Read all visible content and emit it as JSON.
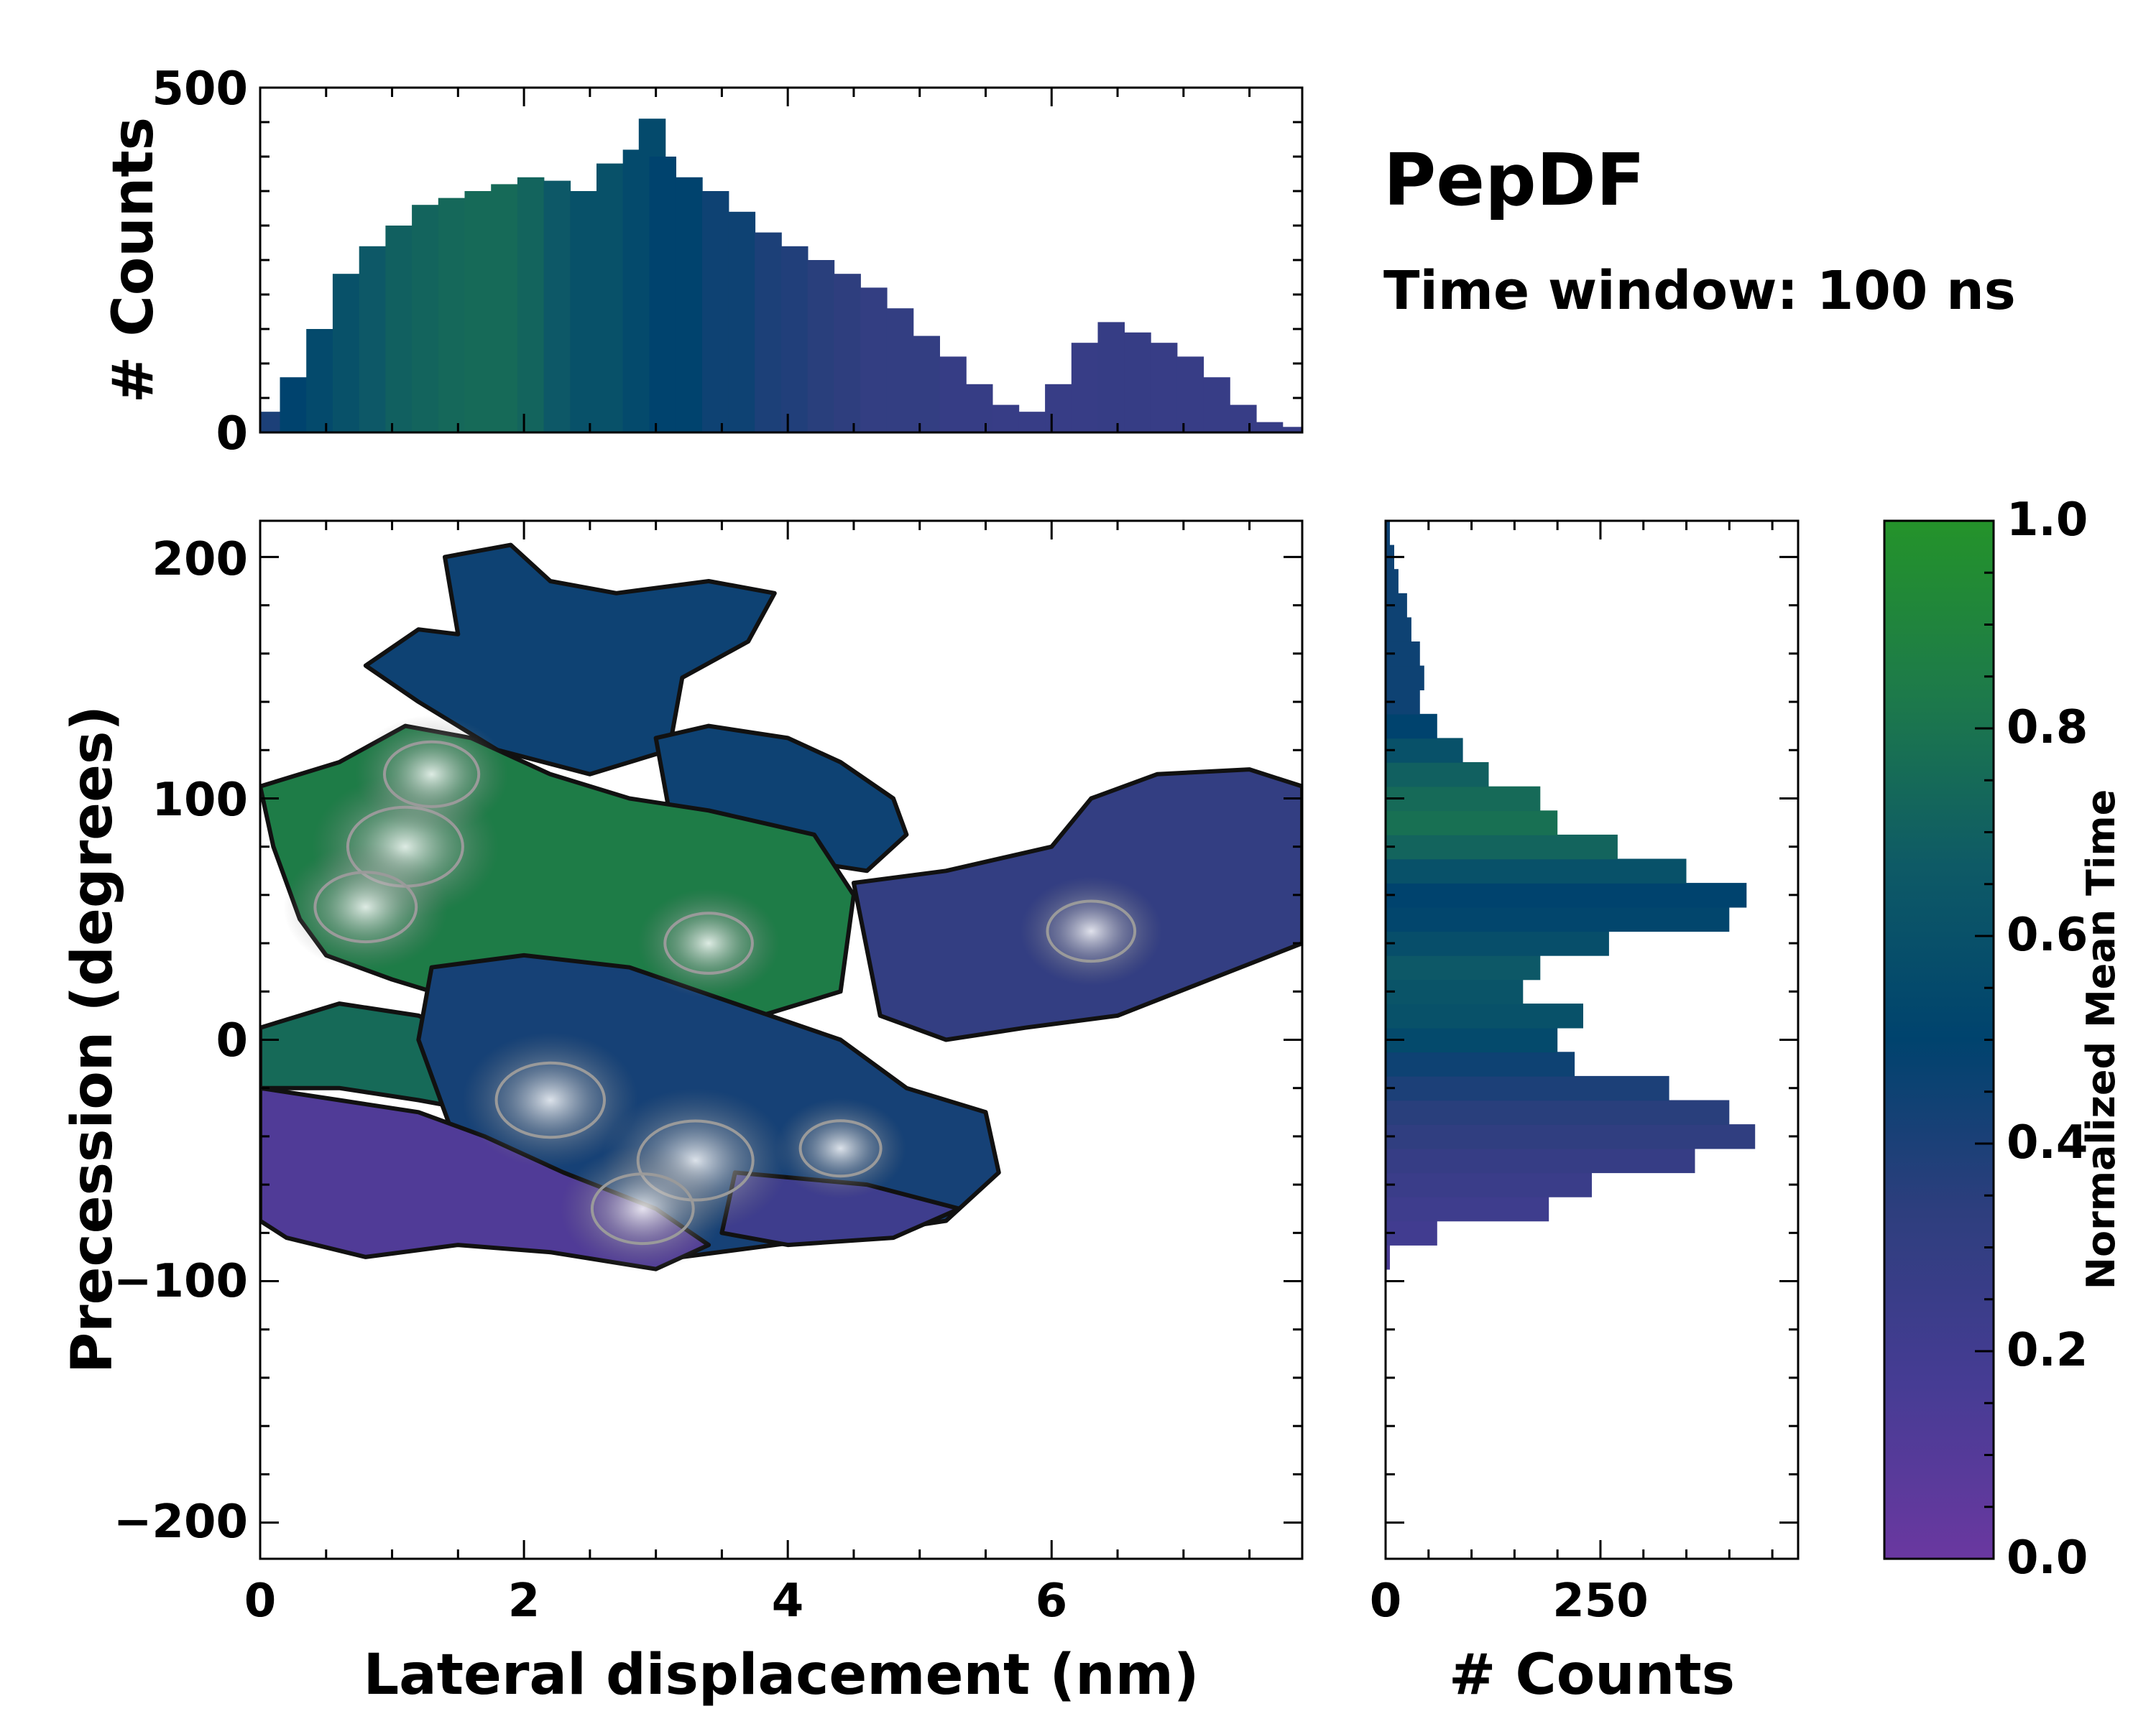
{
  "figure": {
    "title": "PepDF",
    "subtitle": "Time window: 100 ns"
  },
  "chart_data": [
    {
      "id": "top-histogram",
      "type": "bar",
      "ylabel": "# Counts",
      "xlim": [
        0,
        7.9
      ],
      "ylim": [
        0,
        500
      ],
      "yticks": [
        0,
        500
      ],
      "x": [
        0.05,
        0.25,
        0.45,
        0.65,
        0.85,
        1.05,
        1.25,
        1.45,
        1.65,
        1.85,
        2.05,
        2.25,
        2.45,
        2.65,
        2.85,
        2.97,
        3.05,
        3.25,
        3.45,
        3.65,
        3.85,
        4.05,
        4.25,
        4.45,
        4.65,
        4.85,
        5.05,
        5.25,
        5.45,
        5.65,
        5.85,
        6.05,
        6.25,
        6.45,
        6.65,
        6.85,
        7.05,
        7.25,
        7.45,
        7.65,
        7.85
      ],
      "values": [
        30,
        80,
        150,
        230,
        270,
        300,
        330,
        340,
        350,
        360,
        370,
        365,
        350,
        390,
        410,
        455,
        400,
        370,
        350,
        320,
        290,
        270,
        250,
        230,
        210,
        180,
        140,
        110,
        70,
        40,
        30,
        70,
        130,
        160,
        145,
        130,
        110,
        80,
        40,
        15,
        8
      ],
      "color_values": [
        0.4,
        0.5,
        0.55,
        0.6,
        0.65,
        0.7,
        0.72,
        0.74,
        0.75,
        0.75,
        0.72,
        0.65,
        0.6,
        0.6,
        0.55,
        0.55,
        0.5,
        0.5,
        0.45,
        0.45,
        0.4,
        0.38,
        0.35,
        0.33,
        0.3,
        0.3,
        0.3,
        0.28,
        0.28,
        0.27,
        0.27,
        0.27,
        0.27,
        0.28,
        0.28,
        0.27,
        0.27,
        0.27,
        0.27,
        0.27,
        0.27
      ]
    },
    {
      "id": "main-heatmap",
      "type": "heatmap",
      "xlabel": "Lateral displacement (nm)",
      "ylabel": "Precession (degrees)",
      "xlim": [
        0,
        7.9
      ],
      "ylim": [
        -215,
        215
      ],
      "xticks": [
        0,
        2,
        4,
        6
      ],
      "yticks": [
        -200,
        -100,
        0,
        100,
        200
      ],
      "regions": [
        {
          "name": "top-blue",
          "value": 0.45,
          "outline": [
            [
              0.8,
              155
            ],
            [
              1.2,
              170
            ],
            [
              1.5,
              168
            ],
            [
              1.4,
              200
            ],
            [
              1.9,
              205
            ],
            [
              2.2,
              190
            ],
            [
              2.7,
              185
            ],
            [
              3.4,
              190
            ],
            [
              3.9,
              185
            ],
            [
              3.7,
              165
            ],
            [
              3.2,
              150
            ],
            [
              3.1,
              120
            ],
            [
              2.5,
              110
            ],
            [
              1.8,
              120
            ],
            [
              1.2,
              140
            ]
          ]
        },
        {
          "name": "blue-mid-right",
          "value": 0.45,
          "outline": [
            [
              3.0,
              125
            ],
            [
              3.4,
              130
            ],
            [
              4.0,
              125
            ],
            [
              4.4,
              115
            ],
            [
              4.8,
              100
            ],
            [
              4.9,
              85
            ],
            [
              4.6,
              70
            ],
            [
              4.0,
              75
            ],
            [
              3.5,
              85
            ],
            [
              3.1,
              95
            ]
          ]
        },
        {
          "name": "upper-green",
          "value": 0.85,
          "outline": [
            [
              0.0,
              105
            ],
            [
              0.6,
              115
            ],
            [
              1.1,
              130
            ],
            [
              1.6,
              125
            ],
            [
              2.2,
              110
            ],
            [
              2.8,
              100
            ],
            [
              3.4,
              95
            ],
            [
              4.2,
              85
            ],
            [
              4.5,
              60
            ],
            [
              4.4,
              20
            ],
            [
              3.8,
              10
            ],
            [
              3.0,
              15
            ],
            [
              2.2,
              10
            ],
            [
              1.6,
              15
            ],
            [
              1.0,
              25
            ],
            [
              0.5,
              35
            ],
            [
              0.3,
              50
            ],
            [
              0.1,
              80
            ]
          ]
        },
        {
          "name": "lower-green",
          "value": 0.75,
          "outline": [
            [
              0.0,
              5
            ],
            [
              0.6,
              15
            ],
            [
              1.2,
              10
            ],
            [
              1.6,
              0
            ],
            [
              1.7,
              -30
            ],
            [
              1.2,
              -25
            ],
            [
              0.6,
              -20
            ],
            [
              0.0,
              -20
            ]
          ]
        },
        {
          "name": "center-blue",
          "value": 0.42,
          "outline": [
            [
              1.3,
              30
            ],
            [
              2.0,
              35
            ],
            [
              2.8,
              30
            ],
            [
              3.6,
              15
            ],
            [
              4.4,
              0
            ],
            [
              4.9,
              -20
            ],
            [
              5.5,
              -30
            ],
            [
              5.6,
              -55
            ],
            [
              5.2,
              -75
            ],
            [
              4.6,
              -80
            ],
            [
              3.9,
              -85
            ],
            [
              3.2,
              -90
            ],
            [
              2.5,
              -85
            ],
            [
              1.9,
              -75
            ],
            [
              1.6,
              -60
            ],
            [
              1.4,
              -30
            ],
            [
              1.2,
              0
            ]
          ]
        },
        {
          "name": "right-blue",
          "value": 0.3,
          "outline": [
            [
              4.5,
              65
            ],
            [
              5.2,
              70
            ],
            [
              6.0,
              80
            ],
            [
              6.3,
              100
            ],
            [
              6.8,
              110
            ],
            [
              7.5,
              112
            ],
            [
              7.9,
              105
            ],
            [
              7.9,
              40
            ],
            [
              7.2,
              25
            ],
            [
              6.5,
              10
            ],
            [
              5.8,
              5
            ],
            [
              5.2,
              0
            ],
            [
              4.7,
              10
            ]
          ]
        },
        {
          "name": "bottom-purple",
          "value": 0.12,
          "outline": [
            [
              0.0,
              -20
            ],
            [
              0.6,
              -25
            ],
            [
              1.2,
              -30
            ],
            [
              1.7,
              -40
            ],
            [
              2.3,
              -55
            ],
            [
              3.0,
              -70
            ],
            [
              3.4,
              -85
            ],
            [
              3.0,
              -95
            ],
            [
              2.2,
              -88
            ],
            [
              1.5,
              -85
            ],
            [
              0.8,
              -90
            ],
            [
              0.2,
              -82
            ],
            [
              0.0,
              -75
            ]
          ]
        },
        {
          "name": "bottom-right-purple",
          "value": 0.22,
          "outline": [
            [
              3.6,
              -55
            ],
            [
              4.6,
              -60
            ],
            [
              5.3,
              -70
            ],
            [
              4.8,
              -82
            ],
            [
              4.0,
              -85
            ],
            [
              3.5,
              -80
            ]
          ]
        }
      ],
      "hotspots": [
        {
          "x": 1.1,
          "y": 80,
          "intensity": 1.0
        },
        {
          "x": 0.8,
          "y": 55,
          "intensity": 0.8
        },
        {
          "x": 1.3,
          "y": 110,
          "intensity": 0.7
        },
        {
          "x": 2.2,
          "y": -25,
          "intensity": 0.9
        },
        {
          "x": 3.3,
          "y": -50,
          "intensity": 1.0
        },
        {
          "x": 2.9,
          "y": -70,
          "intensity": 0.8
        },
        {
          "x": 3.4,
          "y": 40,
          "intensity": 0.6
        },
        {
          "x": 6.3,
          "y": 45,
          "intensity": 0.6
        },
        {
          "x": 4.4,
          "y": -45,
          "intensity": 0.5
        }
      ]
    },
    {
      "id": "right-histogram",
      "type": "bar",
      "orientation": "horizontal",
      "xlabel": "# Counts",
      "xlim": [
        0,
        480
      ],
      "xticks": [
        0,
        250
      ],
      "y": [
        -90,
        -80,
        -70,
        -60,
        -50,
        -40,
        -30,
        -20,
        -10,
        0,
        10,
        20,
        30,
        40,
        50,
        60,
        70,
        80,
        90,
        100,
        110,
        120,
        130,
        140,
        150,
        160,
        170,
        180,
        190,
        200,
        210
      ],
      "values": [
        5,
        60,
        190,
        240,
        360,
        430,
        400,
        330,
        220,
        200,
        230,
        160,
        180,
        260,
        400,
        420,
        350,
        270,
        200,
        180,
        120,
        90,
        60,
        40,
        45,
        40,
        30,
        25,
        15,
        10,
        5
      ],
      "color_values": [
        0.15,
        0.2,
        0.22,
        0.25,
        0.28,
        0.32,
        0.35,
        0.4,
        0.45,
        0.55,
        0.6,
        0.62,
        0.65,
        0.58,
        0.52,
        0.5,
        0.6,
        0.72,
        0.78,
        0.75,
        0.7,
        0.6,
        0.5,
        0.45,
        0.45,
        0.45,
        0.45,
        0.45,
        0.45,
        0.45,
        0.45
      ]
    },
    {
      "id": "colorbar",
      "type": "colorbar",
      "label": "Normalized Mean Time",
      "range": [
        0.0,
        1.0
      ],
      "ticks": [
        "0.0",
        "0.2",
        "0.4",
        "0.6",
        "0.8",
        "1.0"
      ],
      "stops": [
        "#6a38a0",
        "#463c94",
        "#2e3e7e",
        "#00436e",
        "#0e5a66",
        "#1d7a4a",
        "#24932a"
      ]
    }
  ]
}
